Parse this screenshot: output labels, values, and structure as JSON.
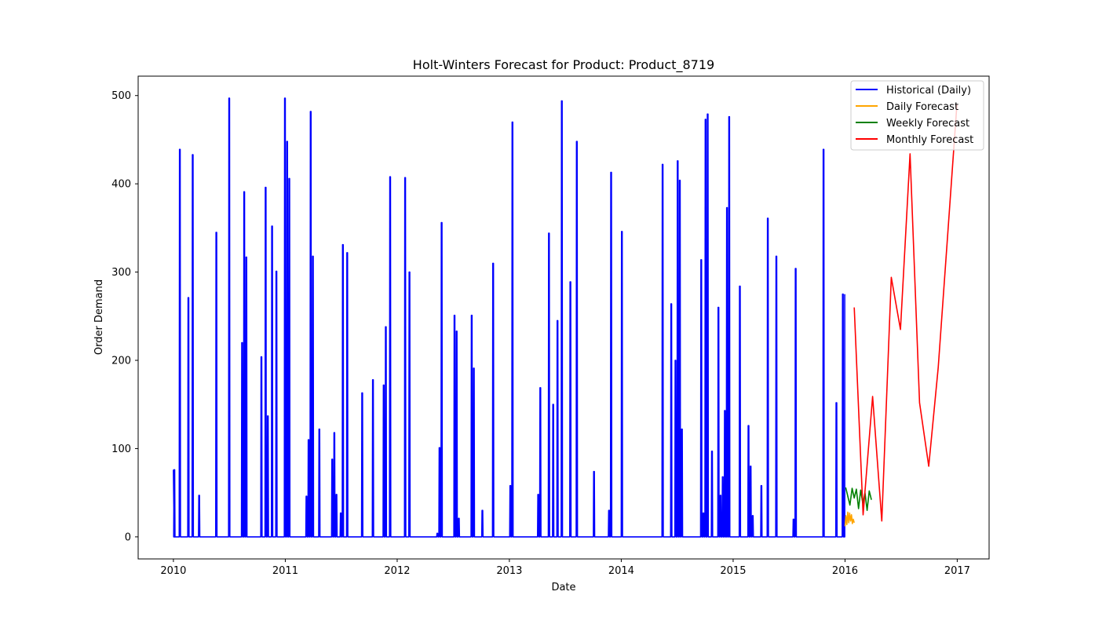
{
  "chart_data": {
    "type": "line",
    "title": "Holt-Winters Forecast for Product: Product_8719",
    "xlabel": "Date",
    "ylabel": "Order Demand",
    "x_ticks": [
      "2010",
      "2011",
      "2012",
      "2013",
      "2014",
      "2015",
      "2016",
      "2017"
    ],
    "y_ticks": [
      "0",
      "100",
      "200",
      "300",
      "400",
      "500"
    ],
    "xlim": [
      "2009-09-08",
      "2017-04-15"
    ],
    "ylim": [
      -25,
      522
    ],
    "grid": false,
    "legend_position": "top-right",
    "series": [
      {
        "name": "Historical (Daily)",
        "color": "#0000ff",
        "style": "spikes",
        "baseline": 0,
        "start": "2010-01-01",
        "end": "2015-12-31",
        "start_value": 76,
        "end_value": 275,
        "spikes": [
          [
            "2010-01-04",
            76
          ],
          [
            "2010-01-22",
            439
          ],
          [
            "2010-02-19",
            271
          ],
          [
            "2010-03-05",
            433
          ],
          [
            "2010-03-26",
            47
          ],
          [
            "2010-05-21",
            345
          ],
          [
            "2010-07-02",
            497
          ],
          [
            "2010-08-13",
            220
          ],
          [
            "2010-08-20",
            391
          ],
          [
            "2010-08-27",
            317
          ],
          [
            "2010-10-15",
            204
          ],
          [
            "2010-10-29",
            396
          ],
          [
            "2010-11-05",
            137
          ],
          [
            "2010-11-19",
            352
          ],
          [
            "2010-12-03",
            301
          ],
          [
            "2010-12-31",
            497
          ],
          [
            "2011-01-07",
            448
          ],
          [
            "2011-01-14",
            406
          ],
          [
            "2011-03-11",
            46
          ],
          [
            "2011-03-18",
            110
          ],
          [
            "2011-03-25",
            482
          ],
          [
            "2011-04-01",
            318
          ],
          [
            "2011-04-22",
            122
          ],
          [
            "2011-06-03",
            88
          ],
          [
            "2011-06-10",
            118
          ],
          [
            "2011-06-17",
            48
          ],
          [
            "2011-07-01",
            27
          ],
          [
            "2011-07-08",
            331
          ],
          [
            "2011-07-22",
            322
          ],
          [
            "2011-09-09",
            163
          ],
          [
            "2011-10-14",
            178
          ],
          [
            "2011-11-18",
            172
          ],
          [
            "2011-11-25",
            238
          ],
          [
            "2011-12-09",
            408
          ],
          [
            "2012-01-27",
            407
          ],
          [
            "2012-02-10",
            300
          ],
          [
            "2012-05-11",
            4
          ],
          [
            "2012-05-18",
            101
          ],
          [
            "2012-05-25",
            356
          ],
          [
            "2012-07-06",
            251
          ],
          [
            "2012-07-13",
            233
          ],
          [
            "2012-07-20",
            21
          ],
          [
            "2012-08-31",
            251
          ],
          [
            "2012-09-07",
            191
          ],
          [
            "2012-10-05",
            30
          ],
          [
            "2012-11-09",
            310
          ],
          [
            "2013-01-04",
            58
          ],
          [
            "2013-01-11",
            470
          ],
          [
            "2013-04-05",
            48
          ],
          [
            "2013-04-12",
            169
          ],
          [
            "2013-05-10",
            344
          ],
          [
            "2013-05-24",
            150
          ],
          [
            "2013-06-07",
            245
          ],
          [
            "2013-06-21",
            494
          ],
          [
            "2013-07-19",
            289
          ],
          [
            "2013-08-09",
            448
          ],
          [
            "2013-10-04",
            74
          ],
          [
            "2013-11-22",
            30
          ],
          [
            "2013-11-29",
            413
          ],
          [
            "2014-01-03",
            346
          ],
          [
            "2014-05-16",
            422
          ],
          [
            "2014-06-13",
            264
          ],
          [
            "2014-06-27",
            200
          ],
          [
            "2014-07-04",
            426
          ],
          [
            "2014-07-11",
            404
          ],
          [
            "2014-07-18",
            122
          ],
          [
            "2014-09-19",
            314
          ],
          [
            "2014-09-26",
            27
          ],
          [
            "2014-10-03",
            473
          ],
          [
            "2014-10-10",
            479
          ],
          [
            "2014-10-24",
            97
          ],
          [
            "2014-11-14",
            260
          ],
          [
            "2014-11-21",
            47
          ],
          [
            "2014-11-28",
            68
          ],
          [
            "2014-12-05",
            143
          ],
          [
            "2014-12-12",
            373
          ],
          [
            "2014-12-19",
            476
          ],
          [
            "2015-01-23",
            284
          ],
          [
            "2015-02-20",
            126
          ],
          [
            "2015-02-27",
            80
          ],
          [
            "2015-03-06",
            24
          ],
          [
            "2015-04-03",
            58
          ],
          [
            "2015-04-24",
            361
          ],
          [
            "2015-05-22",
            318
          ],
          [
            "2015-07-17",
            20
          ],
          [
            "2015-07-24",
            304
          ],
          [
            "2015-10-23",
            439
          ],
          [
            "2015-12-04",
            152
          ],
          [
            "2015-12-25",
            275
          ]
        ]
      },
      {
        "name": "Daily Forecast",
        "color": "#ffa500",
        "points": [
          [
            "2016-01-01",
            12
          ],
          [
            "2016-01-04",
            24
          ],
          [
            "2016-01-07",
            14
          ],
          [
            "2016-01-10",
            28
          ],
          [
            "2016-01-13",
            16
          ],
          [
            "2016-01-16",
            27
          ],
          [
            "2016-01-19",
            18
          ],
          [
            "2016-01-22",
            25
          ],
          [
            "2016-01-25",
            15
          ],
          [
            "2016-01-28",
            20
          ],
          [
            "2016-01-31",
            16
          ]
        ]
      },
      {
        "name": "Weekly Forecast",
        "color": "#008000",
        "points": [
          [
            "2016-01-03",
            56
          ],
          [
            "2016-01-17",
            36
          ],
          [
            "2016-01-24",
            55
          ],
          [
            "2016-01-31",
            44
          ],
          [
            "2016-02-07",
            54
          ],
          [
            "2016-02-14",
            32
          ],
          [
            "2016-02-21",
            53
          ],
          [
            "2016-02-28",
            38
          ],
          [
            "2016-03-06",
            50
          ],
          [
            "2016-03-13",
            30
          ],
          [
            "2016-03-20",
            52
          ],
          [
            "2016-03-27",
            42
          ]
        ]
      },
      {
        "name": "Monthly Forecast",
        "color": "#ff0000",
        "points": [
          [
            "2016-01-31",
            260
          ],
          [
            "2016-02-29",
            25
          ],
          [
            "2016-03-31",
            159
          ],
          [
            "2016-04-30",
            18
          ],
          [
            "2016-05-31",
            294
          ],
          [
            "2016-06-30",
            235
          ],
          [
            "2016-07-31",
            434
          ],
          [
            "2016-08-31",
            152
          ],
          [
            "2016-09-30",
            80
          ],
          [
            "2016-10-31",
            192
          ],
          [
            "2016-11-30",
            338
          ],
          [
            "2016-12-31",
            490
          ]
        ]
      }
    ]
  }
}
